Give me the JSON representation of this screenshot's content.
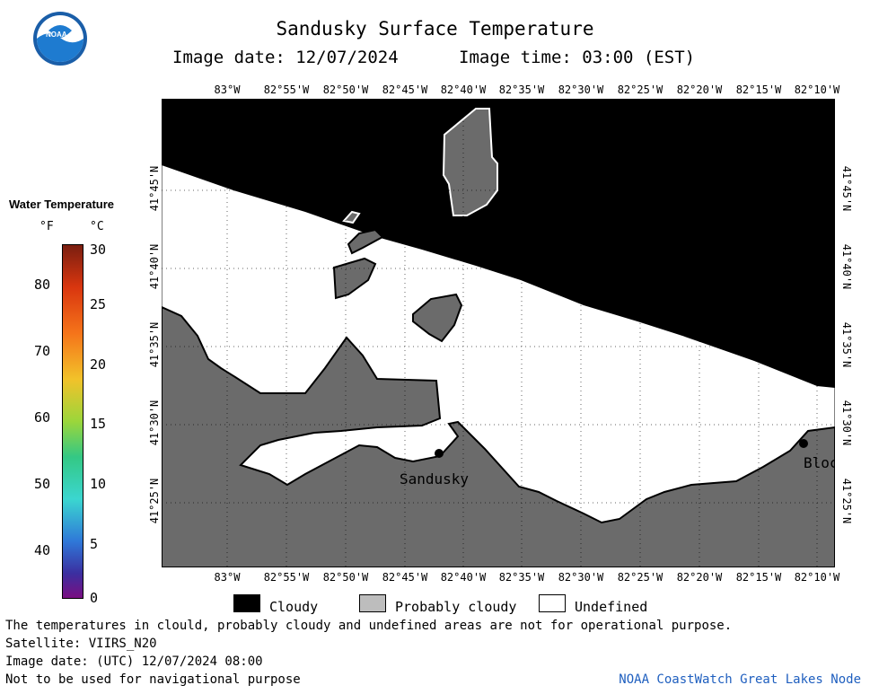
{
  "header": {
    "title": "Sandusky Surface Temperature",
    "image_date": "Image date: 12/07/2024",
    "image_time": "Image time: 03:00 (EST)"
  },
  "logo": {
    "text": "NOAA"
  },
  "colorbar": {
    "title": "Water Temperature",
    "f_unit": "°F",
    "c_unit": "°C",
    "f_ticks": [
      "80",
      "70",
      "60",
      "50",
      "40"
    ],
    "c_ticks": [
      "30",
      "25",
      "20",
      "15",
      "10",
      "5",
      "0"
    ]
  },
  "map": {
    "lon_labels": [
      "83°W",
      "82°55'W",
      "82°50'W",
      "82°45'W",
      "82°40'W",
      "82°35'W",
      "82°30'W",
      "82°25'W",
      "82°20'W",
      "82°15'W",
      "82°10'W"
    ],
    "lat_labels": [
      "41°45'N",
      "41°40'N",
      "41°35'N",
      "41°30'N",
      "41°25'N"
    ],
    "places": {
      "sandusky": "Sandusky",
      "bloc": "Bloc"
    },
    "colors": {
      "cloudy": "#000000",
      "land": "#6b6b6b",
      "undefined": "#ffffff"
    }
  },
  "legend": {
    "cloudy": "Cloudy",
    "probably_cloudy": "Probably cloudy",
    "undefined": "Undefined"
  },
  "footer": {
    "disclaimer": "The temperatures in clould, probably cloudy and undefined areas are not for operational purpose.",
    "satellite": "Satellite: VIIRS_N20",
    "utc_date": "Image date: (UTC) 12/07/2024  08:00",
    "nav_warning": "Not to be used for navigational purpose",
    "credit": "NOAA CoastWatch Great Lakes Node"
  }
}
